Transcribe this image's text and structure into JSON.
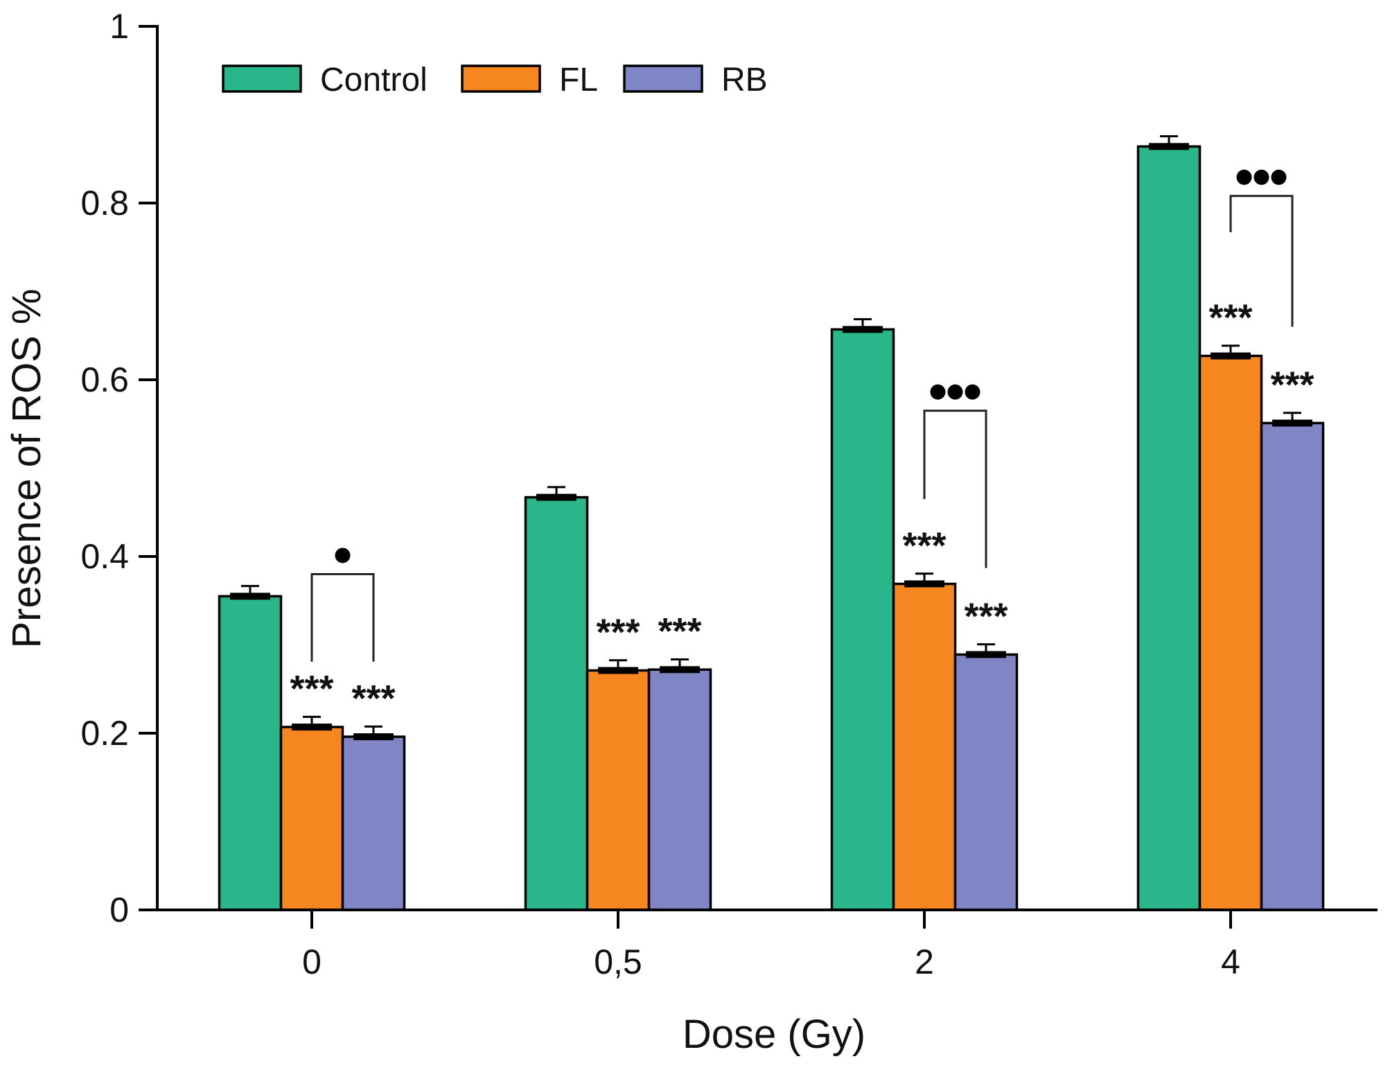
{
  "chart_data": {
    "type": "bar",
    "title": "",
    "xlabel": "Dose (Gy)",
    "ylabel": "Presence of ROS %",
    "categories": [
      "0",
      "0,5",
      "2",
      "4"
    ],
    "series": [
      {
        "name": "Control",
        "color": "#2AB58A",
        "values": [
          0.355,
          0.467,
          0.657,
          0.864
        ],
        "errors": [
          0.01,
          0.01,
          0.01,
          0.01
        ]
      },
      {
        "name": "FL",
        "color": "#F6861F",
        "values": [
          0.207,
          0.271,
          0.369,
          0.627
        ],
        "errors": [
          0.01,
          0.01,
          0.01,
          0.01
        ]
      },
      {
        "name": "RB",
        "color": "#8086C5",
        "values": [
          0.196,
          0.272,
          0.289,
          0.551
        ],
        "errors": [
          0.01,
          0.01,
          0.01,
          0.01
        ]
      }
    ],
    "ylim": [
      0,
      1
    ],
    "yticks": [
      0,
      0.2,
      0.4,
      0.6,
      0.8,
      1
    ],
    "ytick_labels": [
      "0",
      "0.2",
      "0.4",
      "0.6",
      "0.8",
      "1"
    ],
    "grid": false,
    "legend_position": "top-left-inside",
    "axis_color": "#000000",
    "significance": {
      "star_label": "***",
      "stars": [
        {
          "group": 0,
          "series": "FL"
        },
        {
          "group": 0,
          "series": "RB"
        },
        {
          "group": 1,
          "series": "FL"
        },
        {
          "group": 1,
          "series": "RB"
        },
        {
          "group": 2,
          "series": "FL"
        },
        {
          "group": 2,
          "series": "RB"
        },
        {
          "group": 3,
          "series": "FL"
        },
        {
          "group": 3,
          "series": "RB"
        }
      ],
      "brackets": [
        {
          "group": 0,
          "from": "FL",
          "to": "RB",
          "dots": 1,
          "top": 0.38,
          "left_end": 0.281,
          "right_end": 0.281
        },
        {
          "group": 2,
          "from": "FL",
          "to": "RB",
          "dots": 3,
          "top": 0.565,
          "left_end": 0.465,
          "right_end": 0.387
        },
        {
          "group": 3,
          "from": "FL",
          "to": "RB",
          "dots": 3,
          "top": 0.808,
          "left_end": 0.767,
          "right_end": 0.66
        }
      ]
    }
  }
}
